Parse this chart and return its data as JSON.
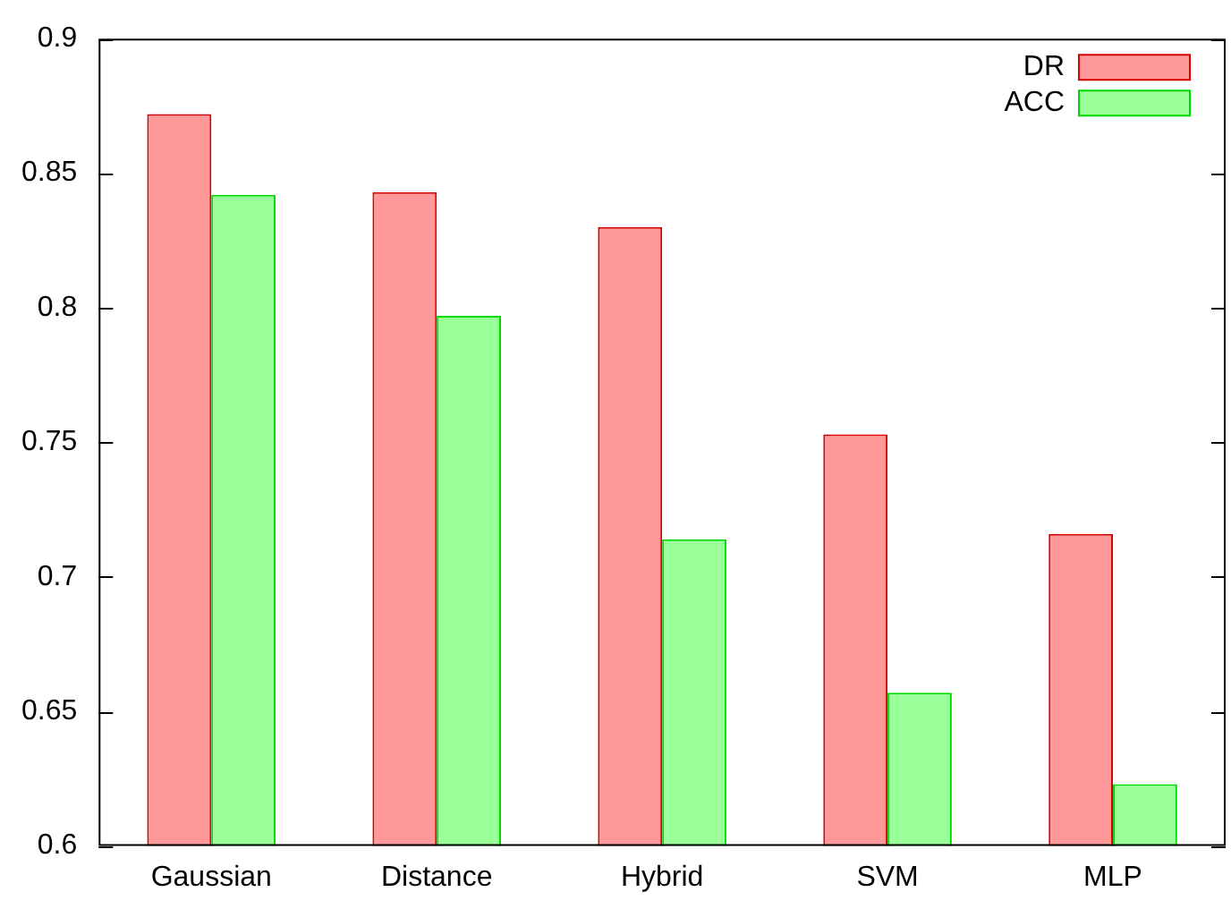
{
  "chart_data": {
    "type": "bar",
    "categories": [
      "Gaussian",
      "Distance",
      "Hybrid",
      "SVM",
      "MLP"
    ],
    "series": [
      {
        "name": "DR",
        "color": "#ff9999",
        "values": [
          0.872,
          0.843,
          0.83,
          0.753,
          0.716
        ]
      },
      {
        "name": "ACC",
        "color": "#99ff99",
        "values": [
          0.842,
          0.797,
          0.714,
          0.657,
          0.623
        ]
      }
    ],
    "ylim": [
      0.6,
      0.9
    ],
    "yticks": [
      {
        "value": 0.6,
        "label": "0.6"
      },
      {
        "value": 0.65,
        "label": "0.65"
      },
      {
        "value": 0.7,
        "label": "0.7"
      },
      {
        "value": 0.75,
        "label": "0.75"
      },
      {
        "value": 0.8,
        "label": "0.8"
      },
      {
        "value": 0.85,
        "label": "0.85"
      },
      {
        "value": 0.9,
        "label": "0.9"
      }
    ],
    "grid": false,
    "legend": "top right"
  }
}
